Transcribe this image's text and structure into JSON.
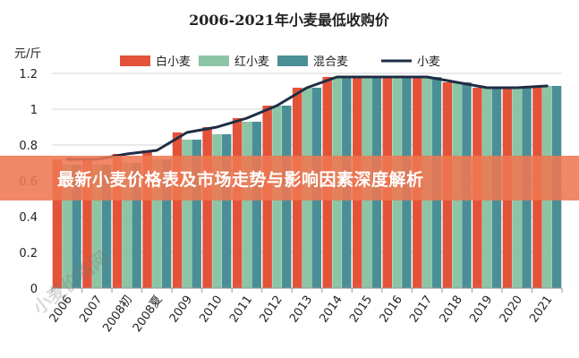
{
  "banner": {
    "text": "最新小麦价格表及市场走势与影响因素深度解析"
  },
  "watermark": {
    "text": "小麦价格网"
  },
  "chart_data": {
    "type": "bar",
    "title": "2006-2021年小麦最低收购价",
    "ylabel": "元/斤",
    "xlabel": "",
    "ylim": [
      0,
      1.2
    ],
    "yticks": [
      0,
      0.2,
      0.4,
      0.6,
      0.8,
      1,
      1.2
    ],
    "grid": "horizontal",
    "legend_position": "top",
    "categories": [
      "2006",
      "2007",
      "2008初",
      "2008夏",
      "2009",
      "2010",
      "2011",
      "2012",
      "2013",
      "2014",
      "2015",
      "2016",
      "2017",
      "2018",
      "2019",
      "2020",
      "2021"
    ],
    "series": [
      {
        "name": "白小麦",
        "type": "bar",
        "color": "#e2533a",
        "values": [
          0.72,
          0.72,
          0.75,
          0.77,
          0.87,
          0.9,
          0.95,
          1.02,
          1.12,
          1.18,
          1.18,
          1.18,
          1.18,
          1.15,
          1.12,
          1.12,
          1.13
        ]
      },
      {
        "name": "红小麦",
        "type": "bar",
        "color": "#8cc5a6",
        "values": [
          0.69,
          0.69,
          0.7,
          0.72,
          0.83,
          0.86,
          0.93,
          1.02,
          1.12,
          1.18,
          1.18,
          1.18,
          1.18,
          1.15,
          1.12,
          1.12,
          1.13
        ]
      },
      {
        "name": "混合麦",
        "type": "bar",
        "color": "#4b8f96",
        "values": [
          0.69,
          0.69,
          0.7,
          0.72,
          0.83,
          0.86,
          0.93,
          1.02,
          1.12,
          1.18,
          1.18,
          1.18,
          1.18,
          1.15,
          1.12,
          1.12,
          1.13
        ]
      },
      {
        "name": "小麦",
        "type": "line",
        "color": "#1f2d45",
        "values": [
          0.72,
          0.72,
          0.75,
          0.77,
          0.87,
          0.9,
          0.95,
          1.02,
          1.12,
          1.18,
          1.18,
          1.18,
          1.18,
          1.15,
          1.12,
          1.12,
          1.13
        ]
      }
    ]
  }
}
